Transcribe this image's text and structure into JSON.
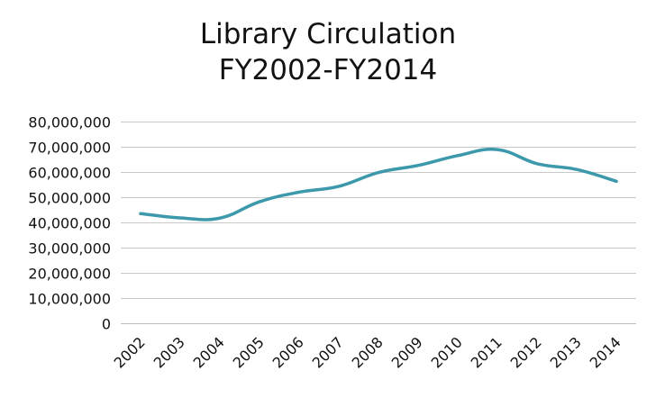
{
  "chart_data": {
    "type": "line",
    "title_lines": [
      "Library Circulation",
      "FY2002-FY2014"
    ],
    "categories": [
      "2002",
      "2003",
      "2004",
      "2005",
      "2006",
      "2007",
      "2008",
      "2009",
      "2010",
      "2011",
      "2012",
      "2013",
      "2014"
    ],
    "series": [
      {
        "values": [
          43500000,
          41800000,
          41700000,
          48200000,
          52000000,
          54300000,
          59800000,
          62600000,
          66500000,
          68900000,
          63300000,
          61000000,
          56300000
        ]
      }
    ],
    "y_tick_labels": [
      "0",
      "10,000,000",
      "20,000,000",
      "30,000,000",
      "40,000,000",
      "50,000,000",
      "60,000,000",
      "70,000,000",
      "80,000,000"
    ],
    "ylim": [
      0,
      80000000
    ],
    "y_step": 10000000,
    "grid": true,
    "legend": "none",
    "line_color": "#3c98ab",
    "grid_color": "#c9c9c9",
    "axis_color": "#bdbdbd"
  }
}
